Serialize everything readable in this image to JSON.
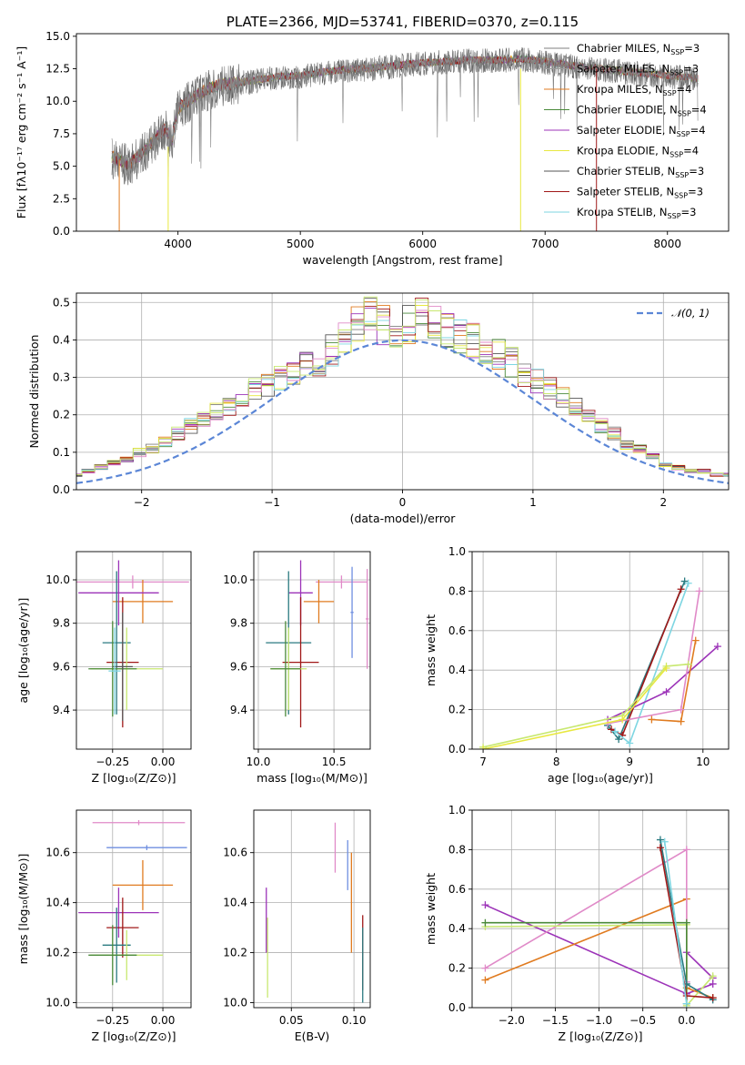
{
  "colors": [
    "#7f7f7f",
    "#9b9b9b",
    "#e07b20",
    "#4a8a3a",
    "#9c33b8",
    "#e8e840",
    "#555555",
    "#a01818",
    "#7ed6e2",
    "#6f8fe0",
    "#e08ac8",
    "#c8e870",
    "#2a7a80"
  ],
  "chart_data": [
    {
      "id": "spectrum",
      "type": "line",
      "title": "PLATE=2366, MJD=53741, FIBERID=0370, z=0.115",
      "xlabel": "wavelength [Angstrom, rest frame]",
      "ylabel": "Flux [fλ10⁻¹⁷ erg cm⁻² s⁻¹ A⁻¹]",
      "xlim": [
        3170,
        8500
      ],
      "ylim": [
        0,
        15.2
      ],
      "xticks": [
        "4000",
        "5000",
        "6000",
        "7000",
        "8000"
      ],
      "yticks": [
        "0.0",
        "2.5",
        "5.0",
        "7.5",
        "10.0",
        "12.5",
        "15.0"
      ],
      "grid": false,
      "legend_position": "right",
      "x": [
        3460,
        3600,
        3700,
        3800,
        3900,
        3950,
        4000,
        4100,
        4200,
        4300,
        4400,
        4600,
        4800,
        5000,
        5200,
        5400,
        5600,
        5800,
        6000,
        6200,
        6400,
        6600,
        6800,
        7000,
        7200,
        7400,
        7600,
        7800,
        8000,
        8250
      ],
      "y": [
        5.8,
        5.2,
        6.0,
        7.0,
        8.0,
        7.0,
        9.5,
        10.2,
        10.8,
        11.2,
        11.4,
        11.6,
        11.9,
        12.0,
        12.3,
        12.5,
        12.6,
        12.8,
        13.0,
        13.1,
        13.2,
        13.2,
        13.3,
        13.1,
        12.8,
        12.6,
        12.4,
        12.2,
        12.0,
        11.8
      ],
      "series": [
        {
          "name": "Chabrier MILES, N",
          "sub": "SSP",
          "tail": "=3"
        },
        {
          "name": "Salpeter MILES, N",
          "sub": "SSP",
          "tail": "=3"
        },
        {
          "name": "Kroupa MILES, N",
          "sub": "SSP",
          "tail": "=4"
        },
        {
          "name": "Chabrier ELODIE, N",
          "sub": "SSP",
          "tail": "=4"
        },
        {
          "name": "Salpeter ELODIE, N",
          "sub": "SSP",
          "tail": "=4"
        },
        {
          "name": "Kroupa ELODIE, N",
          "sub": "SSP",
          "tail": "=4"
        },
        {
          "name": "Chabrier STELIB, N",
          "sub": "SSP",
          "tail": "=3"
        },
        {
          "name": "Salpeter STELIB, N",
          "sub": "SSP",
          "tail": "=3"
        },
        {
          "name": "Kroupa STELIB, N",
          "sub": "SSP",
          "tail": "=3"
        }
      ]
    },
    {
      "id": "residuals",
      "type": "bar",
      "xlabel": "(data-model)/error",
      "ylabel": "Normed distribution",
      "xlim": [
        -2.5,
        2.5
      ],
      "ylim": [
        0,
        0.525
      ],
      "xticks": [
        "−2",
        "−1",
        "0",
        "1",
        "2"
      ],
      "yticks": [
        "0.0",
        "0.1",
        "0.2",
        "0.3",
        "0.4",
        "0.5"
      ],
      "grid": true,
      "legend_position": "top-right",
      "legend": "𝒩(0, 1)",
      "bin_width": 0.1,
      "hist": [
        0.03,
        0.03,
        0.03,
        0.04,
        0.04,
        0.05,
        0.06,
        0.07,
        0.08,
        0.1,
        0.11,
        0.13,
        0.15,
        0.17,
        0.19,
        0.21,
        0.22,
        0.24,
        0.27,
        0.28,
        0.3,
        0.31,
        0.33,
        0.34,
        0.37,
        0.4,
        0.45,
        0.48,
        0.44,
        0.42,
        0.44,
        0.46,
        0.45,
        0.43,
        0.41,
        0.4,
        0.38,
        0.36,
        0.34,
        0.31,
        0.29,
        0.27,
        0.25,
        0.22,
        0.19,
        0.17,
        0.15,
        0.12,
        0.11,
        0.09,
        0.07,
        0.06,
        0.05,
        0.05,
        0.04,
        0.04,
        0.03,
        0.03,
        0.03,
        0.02
      ]
    },
    {
      "id": "age-vs-Z",
      "type": "scatter",
      "xlabel": "Z [log₁₀(Z/Z⊙)]",
      "ylabel": "age  [log₁₀(age/yr)]",
      "xlim": [
        -0.43,
        0.14
      ],
      "ylim": [
        9.22,
        10.13
      ],
      "xticks": [
        "−0.25",
        "0.00"
      ],
      "yticks": [
        "9.4",
        "9.6",
        "9.8",
        "10.0"
      ],
      "points": [
        {
          "x": -0.15,
          "y": 9.99,
          "xerr": 0.28,
          "yerr": 0.03,
          "c": 10
        },
        {
          "x": -0.1,
          "y": 9.9,
          "xerr": 0.15,
          "yerr": 0.1,
          "c": 2
        },
        {
          "x": -0.22,
          "y": 9.94,
          "xerr": 0.2,
          "yerr": 0.15,
          "c": 4
        },
        {
          "x": -0.2,
          "y": 9.62,
          "xerr": 0.08,
          "yerr": 0.3,
          "c": 7
        },
        {
          "x": -0.23,
          "y": 9.71,
          "xerr": 0.07,
          "yerr": 0.33,
          "c": 12
        },
        {
          "x": -0.18,
          "y": 9.59,
          "xerr": 0.18,
          "yerr": 0.19,
          "c": 11
        },
        {
          "x": -0.25,
          "y": 9.59,
          "xerr": 0.12,
          "yerr": 0.22,
          "c": 3
        },
        {
          "x": -0.2,
          "y": 9.6,
          "xerr": 0.05,
          "yerr": 0.25,
          "c": 6
        },
        {
          "x": -0.24,
          "y": 9.58,
          "xerr": 0.03,
          "yerr": 0.2,
          "c": 8
        }
      ]
    },
    {
      "id": "age-vs-mass",
      "type": "scatter",
      "xlabel": "mass [log₁₀(M/M⊙)]",
      "ylabel": "",
      "xlim": [
        9.97,
        10.74
      ],
      "ylim": [
        9.22,
        10.13
      ],
      "xticks": [
        "10.0",
        "10.5"
      ],
      "yticks": [
        "9.4",
        "9.6",
        "9.8",
        "10.0"
      ],
      "points": [
        {
          "x": 10.55,
          "y": 9.99,
          "xerr": 0.17,
          "yerr": 0.03,
          "c": 10
        },
        {
          "x": 10.4,
          "y": 9.9,
          "xerr": 0.1,
          "yerr": 0.1,
          "c": 2
        },
        {
          "x": 10.28,
          "y": 9.94,
          "xerr": 0.08,
          "yerr": 0.15,
          "c": 4
        },
        {
          "x": 10.2,
          "y": 9.71,
          "xerr": 0.15,
          "yerr": 0.33,
          "c": 12
        },
        {
          "x": 10.28,
          "y": 9.62,
          "xerr": 0.12,
          "yerr": 0.3,
          "c": 7
        },
        {
          "x": 10.2,
          "y": 9.59,
          "xerr": 0.12,
          "yerr": 0.19,
          "c": 11
        },
        {
          "x": 10.18,
          "y": 9.59,
          "xerr": 0.1,
          "yerr": 0.22,
          "c": 3
        },
        {
          "x": 10.72,
          "y": 9.82,
          "xerr": 0.01,
          "yerr": 0.23,
          "c": 10
        },
        {
          "x": 10.62,
          "y": 9.85,
          "xerr": 0.01,
          "yerr": 0.21,
          "c": 9
        }
      ]
    },
    {
      "id": "massweight-vs-age",
      "type": "line",
      "xlabel": "age  [log₁₀(age/yr)]",
      "ylabel": "mass weight",
      "xlim": [
        6.85,
        10.35
      ],
      "ylim": [
        0,
        1
      ],
      "xticks": [
        "7",
        "8",
        "9",
        "10"
      ],
      "yticks": [
        "0.0",
        "0.2",
        "0.4",
        "0.6",
        "0.8",
        "1.0"
      ],
      "series": [
        {
          "c": 12,
          "x": [
            8.7,
            8.85,
            9.75
          ],
          "y": [
            0.12,
            0.05,
            0.85
          ]
        },
        {
          "c": 7,
          "x": [
            8.75,
            8.9,
            9.7
          ],
          "y": [
            0.1,
            0.07,
            0.81
          ]
        },
        {
          "c": 8,
          "x": [
            8.8,
            9.0,
            9.8
          ],
          "y": [
            0.09,
            0.03,
            0.84
          ]
        },
        {
          "c": 4,
          "x": [
            8.7,
            9.5,
            10.2
          ],
          "y": [
            0.15,
            0.29,
            0.52
          ]
        },
        {
          "c": 2,
          "x": [
            9.3,
            9.7,
            9.9
          ],
          "y": [
            0.15,
            0.14,
            0.55
          ]
        },
        {
          "c": 10,
          "x": [
            8.7,
            9.7,
            9.95
          ],
          "y": [
            0.13,
            0.2,
            0.8
          ]
        },
        {
          "c": 11,
          "x": [
            7.0,
            8.9,
            9.5,
            9.8
          ],
          "y": [
            0.01,
            0.17,
            0.42,
            0.43
          ]
        },
        {
          "c": 5,
          "x": [
            7.0,
            8.9,
            9.5
          ],
          "y": [
            0.0,
            0.15,
            0.41
          ]
        }
      ]
    },
    {
      "id": "mass-vs-Z",
      "type": "scatter",
      "xlabel": "Z [log₁₀(Z/Z⊙)]",
      "ylabel": "mass [log₁₀(M/M⊙)]",
      "xlim": [
        -0.43,
        0.14
      ],
      "ylim": [
        9.98,
        10.77
      ],
      "xticks": [
        "−0.25",
        "0.00"
      ],
      "yticks": [
        "10.0",
        "10.2",
        "10.4",
        "10.6"
      ],
      "points": [
        {
          "x": -0.12,
          "y": 10.72,
          "xerr": 0.23,
          "yerr": 0.01,
          "c": 10
        },
        {
          "x": -0.08,
          "y": 10.62,
          "xerr": 0.2,
          "yerr": 0.01,
          "c": 9
        },
        {
          "x": -0.1,
          "y": 10.47,
          "xerr": 0.15,
          "yerr": 0.1,
          "c": 2
        },
        {
          "x": -0.22,
          "y": 10.36,
          "xerr": 0.2,
          "yerr": 0.1,
          "c": 4
        },
        {
          "x": -0.2,
          "y": 10.3,
          "xerr": 0.08,
          "yerr": 0.12,
          "c": 7
        },
        {
          "x": -0.23,
          "y": 10.23,
          "xerr": 0.07,
          "yerr": 0.15,
          "c": 12
        },
        {
          "x": -0.18,
          "y": 10.19,
          "xerr": 0.18,
          "yerr": 0.1,
          "c": 11
        },
        {
          "x": -0.25,
          "y": 10.19,
          "xerr": 0.12,
          "yerr": 0.12,
          "c": 3
        }
      ]
    },
    {
      "id": "mass-vs-EBV",
      "type": "scatter",
      "xlabel": "E(B-V)",
      "ylabel": "",
      "xlim": [
        0.02,
        0.113
      ],
      "ylim": [
        9.98,
        10.77
      ],
      "xticks": [
        "0.05",
        "0.10"
      ],
      "yticks": [
        "10.0",
        "10.2",
        "10.4",
        "10.6"
      ],
      "points": [
        {
          "x": 0.085,
          "y": 10.62,
          "xerr": 0,
          "yerr": 0.1,
          "c": 10
        },
        {
          "x": 0.095,
          "y": 10.55,
          "xerr": 0,
          "yerr": 0.1,
          "c": 9
        },
        {
          "x": 0.098,
          "y": 10.4,
          "xerr": 0,
          "yerr": 0.2,
          "c": 2
        },
        {
          "x": 0.107,
          "y": 10.2,
          "xerr": 0,
          "yerr": 0.15,
          "c": 7
        },
        {
          "x": 0.107,
          "y": 10.15,
          "xerr": 0,
          "yerr": 0.15,
          "c": 12
        },
        {
          "x": 0.03,
          "y": 10.33,
          "xerr": 0,
          "yerr": 0.13,
          "c": 4
        },
        {
          "x": 0.031,
          "y": 10.18,
          "xerr": 0,
          "yerr": 0.16,
          "c": 11
        }
      ]
    },
    {
      "id": "massweight-vs-Z",
      "type": "line",
      "xlabel": "Z [log₁₀(Z/Z⊙)]",
      "ylabel": "mass weight",
      "xlim": [
        -2.45,
        0.48
      ],
      "ylim": [
        0,
        1
      ],
      "xticks": [
        "−2.0",
        "−1.5",
        "−1.0",
        "−0.5",
        "0.0"
      ],
      "yticks": [
        "0.0",
        "0.2",
        "0.4",
        "0.6",
        "0.8",
        "1.0"
      ],
      "series": [
        {
          "c": 4,
          "x": [
            -2.3,
            0.0,
            0.3
          ],
          "y": [
            0.52,
            0.07,
            0.12
          ]
        },
        {
          "c": 4,
          "x": [
            0.0,
            0.3
          ],
          "y": [
            0.28,
            0.15
          ]
        },
        {
          "c": 2,
          "x": [
            -2.3,
            0.0,
            0.0,
            0.3
          ],
          "y": [
            0.14,
            0.55,
            0.1,
            0.05
          ]
        },
        {
          "c": 10,
          "x": [
            -2.3,
            0.0,
            0.0
          ],
          "y": [
            0.2,
            0.8,
            0.13
          ]
        },
        {
          "c": 11,
          "x": [
            -2.3,
            0.0,
            0.0,
            0.3
          ],
          "y": [
            0.41,
            0.42,
            0.01,
            0.16
          ]
        },
        {
          "c": 3,
          "x": [
            -2.3,
            0.0,
            0.0
          ],
          "y": [
            0.43,
            0.43,
            0.02
          ]
        },
        {
          "c": 12,
          "x": [
            -0.3,
            0.0,
            0.3
          ],
          "y": [
            0.85,
            0.12,
            0.04
          ]
        },
        {
          "c": 7,
          "x": [
            -0.3,
            0.0,
            0.3
          ],
          "y": [
            0.81,
            0.06,
            0.05
          ]
        },
        {
          "c": 8,
          "x": [
            -0.25,
            0.0
          ],
          "y": [
            0.84,
            0.02
          ]
        }
      ]
    }
  ]
}
